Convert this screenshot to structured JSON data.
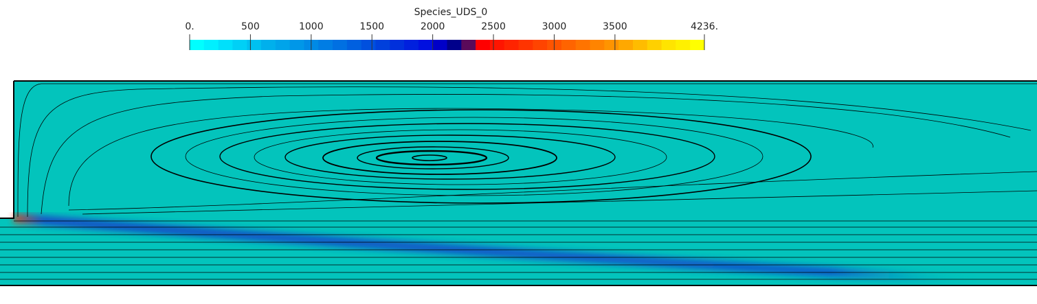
{
  "colorbar": {
    "title": "Species_UDS_0",
    "range": [
      0,
      4236
    ],
    "ticks": [
      {
        "value": 0,
        "label": "0."
      },
      500,
      1000,
      1500,
      2000,
      2500,
      3000,
      3500,
      {
        "value": 4236,
        "label": "4236."
      }
    ],
    "colors": [
      "#00ffff",
      "#00f0ff",
      "#00e0fb",
      "#00d0f6",
      "#00c0f0",
      "#00b0ec",
      "#00a4ea",
      "#0097e8",
      "#008ae6",
      "#007de4",
      "#0070e2",
      "#0060e0",
      "#0050de",
      "#0040dc",
      "#0030dc",
      "#0020de",
      "#0010e0",
      "#0000c8",
      "#00008b",
      "#5a0a5a",
      "#ff0000",
      "#ff1500",
      "#ff2400",
      "#ff3400",
      "#ff4400",
      "#ff5400",
      "#ff6400",
      "#ff7400",
      "#ff8400",
      "#ff9400",
      "#ffa800",
      "#ffbc00",
      "#ffd000",
      "#ffe400",
      "#fff000",
      "#ffff00"
    ]
  }
}
